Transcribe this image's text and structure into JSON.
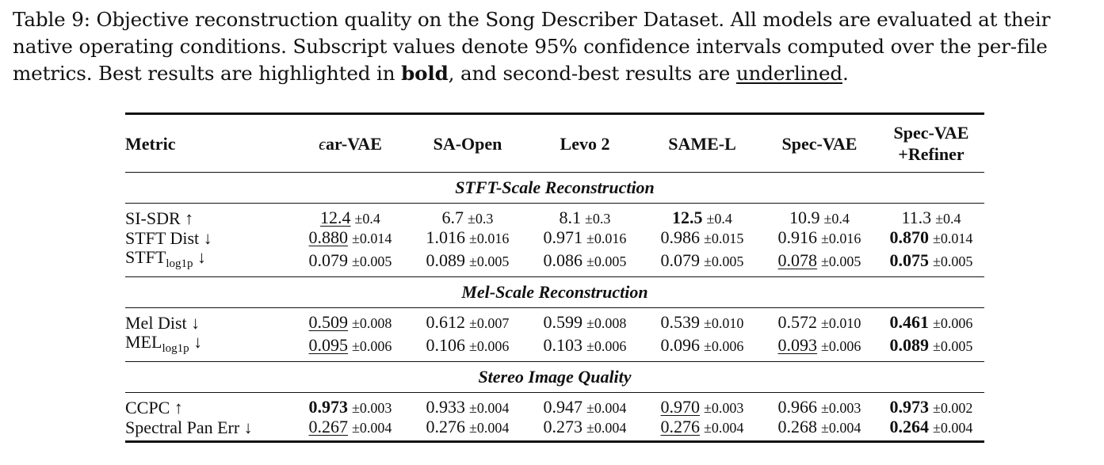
{
  "caption": {
    "part1": "Table 9: Objective reconstruction quality on the Song Describer Dataset. All models are evaluated at their native operating conditions. Subscript values denote 95% confidence intervals computed over the per-file metrics. Best results are highlighted in ",
    "bold_word": "bold",
    "part2": ", and second-best results are ",
    "underline_word": "underlined",
    "part3": "."
  },
  "table": {
    "headers": {
      "metric": "Metric",
      "ear_vae_prefix": "ϵ",
      "ear_vae": "ar-VAE",
      "sa_open": "SA-Open",
      "levo2": "Levo 2",
      "same_l": "SAME-L",
      "spec_vae": "Spec-VAE",
      "spec_vae_refiner_line1": "Spec-VAE",
      "spec_vae_refiner_line2": "+Refiner"
    },
    "sections": [
      {
        "title": "STFT-Scale Reconstruction",
        "rows": [
          {
            "metric": "SI-SDR ↑",
            "cells": [
              {
                "v": "12.4",
                "ci": "±0.4"
              },
              {
                "v": "6.7",
                "ci": "±0.3"
              },
              {
                "v": "8.1",
                "ci": "±0.3"
              },
              {
                "v": "12.5",
                "ci": "±0.4"
              },
              {
                "v": "10.9",
                "ci": "±0.4"
              },
              {
                "v": "11.3",
                "ci": "±0.4"
              }
            ]
          },
          {
            "metric": "STFT Dist ↓",
            "cells": [
              {
                "v": "0.880",
                "ci": "±0.014"
              },
              {
                "v": "1.016",
                "ci": "±0.016"
              },
              {
                "v": "0.971",
                "ci": "±0.016"
              },
              {
                "v": "0.986",
                "ci": "±0.015"
              },
              {
                "v": "0.916",
                "ci": "±0.016"
              },
              {
                "v": "0.870",
                "ci": "±0.014"
              }
            ]
          },
          {
            "metric_main": "STFT",
            "metric_sub": "log1p",
            "metric_arrow": " ↓",
            "cells": [
              {
                "v": "0.079",
                "ci": "±0.005"
              },
              {
                "v": "0.089",
                "ci": "±0.005"
              },
              {
                "v": "0.086",
                "ci": "±0.005"
              },
              {
                "v": "0.079",
                "ci": "±0.005"
              },
              {
                "v": "0.078",
                "ci": "±0.005"
              },
              {
                "v": "0.075",
                "ci": "±0.005"
              }
            ]
          }
        ]
      },
      {
        "title": "Mel-Scale Reconstruction",
        "rows": [
          {
            "metric": "Mel Dist ↓",
            "cells": [
              {
                "v": "0.509",
                "ci": "±0.008"
              },
              {
                "v": "0.612",
                "ci": "±0.007"
              },
              {
                "v": "0.599",
                "ci": "±0.008"
              },
              {
                "v": "0.539",
                "ci": "±0.010"
              },
              {
                "v": "0.572",
                "ci": "±0.010"
              },
              {
                "v": "0.461",
                "ci": "±0.006"
              }
            ]
          },
          {
            "metric_main": "MEL",
            "metric_sub": "log1p",
            "metric_arrow": " ↓",
            "cells": [
              {
                "v": "0.095",
                "ci": "±0.006"
              },
              {
                "v": "0.106",
                "ci": "±0.006"
              },
              {
                "v": "0.103",
                "ci": "±0.006"
              },
              {
                "v": "0.096",
                "ci": "±0.006"
              },
              {
                "v": "0.093",
                "ci": "±0.006"
              },
              {
                "v": "0.089",
                "ci": "±0.005"
              }
            ]
          }
        ]
      },
      {
        "title": "Stereo Image Quality",
        "rows": [
          {
            "metric": "CCPC ↑",
            "cells": [
              {
                "v": "0.973",
                "ci": "±0.003"
              },
              {
                "v": "0.933",
                "ci": "±0.004"
              },
              {
                "v": "0.947",
                "ci": "±0.004"
              },
              {
                "v": "0.970",
                "ci": "±0.003"
              },
              {
                "v": "0.966",
                "ci": "±0.003"
              },
              {
                "v": "0.973",
                "ci": "±0.002"
              }
            ]
          },
          {
            "metric": "Spectral Pan Err ↓",
            "cells": [
              {
                "v": "0.267",
                "ci": "±0.004"
              },
              {
                "v": "0.276",
                "ci": "±0.004"
              },
              {
                "v": "0.273",
                "ci": "±0.004"
              },
              {
                "v": "0.276",
                "ci": "±0.004"
              },
              {
                "v": "0.268",
                "ci": "±0.004"
              },
              {
                "v": "0.264",
                "ci": "±0.004"
              }
            ]
          }
        ]
      }
    ]
  }
}
